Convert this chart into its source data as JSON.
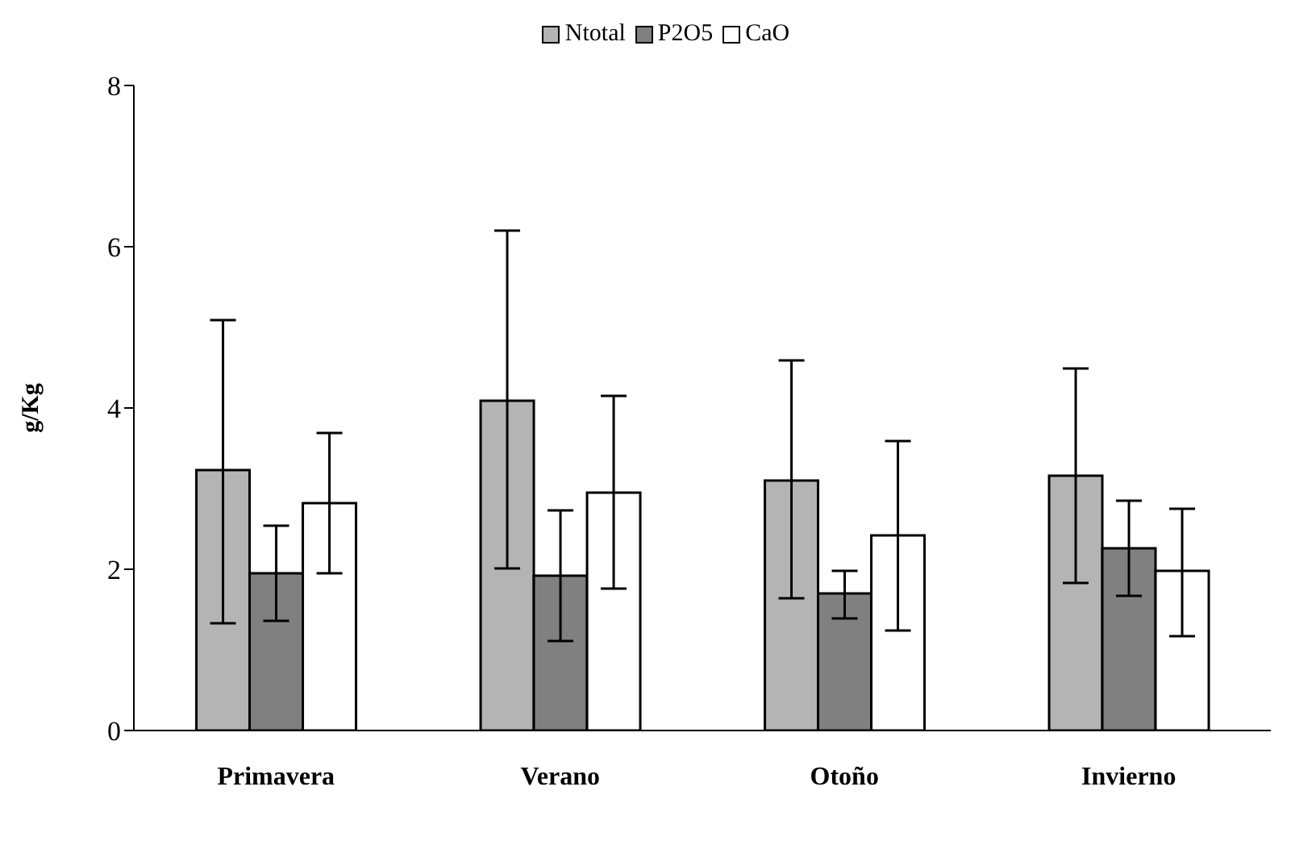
{
  "chart_data": {
    "type": "bar",
    "ylabel": "g/Kg",
    "categories": [
      "Primavera",
      "Verano",
      "Otoño",
      "Invierno"
    ],
    "series": [
      {
        "name": "Ntotal",
        "color": "#b4b4b4",
        "values": [
          3.23,
          4.09,
          3.1,
          3.16
        ],
        "errors": [
          [
            1.33,
            5.09
          ],
          [
            2.01,
            6.2
          ],
          [
            1.64,
            4.59
          ],
          [
            1.83,
            4.49
          ]
        ]
      },
      {
        "name": "P2O5",
        "color": "#808080",
        "values": [
          1.95,
          1.92,
          1.7,
          2.26
        ],
        "errors": [
          [
            1.36,
            2.54
          ],
          [
            1.11,
            2.73
          ],
          [
            1.39,
            1.98
          ],
          [
            1.67,
            2.85
          ]
        ]
      },
      {
        "name": "CaO",
        "color": "#ffffff",
        "values": [
          2.82,
          2.95,
          2.42,
          1.98
        ],
        "errors": [
          [
            1.95,
            3.69
          ],
          [
            1.76,
            4.15
          ],
          [
            1.24,
            3.59
          ],
          [
            1.17,
            2.75
          ]
        ]
      }
    ],
    "ylim": [
      0,
      8
    ],
    "yticks": [
      0,
      2,
      4,
      6,
      8
    ],
    "grid": false,
    "legend": "top"
  }
}
